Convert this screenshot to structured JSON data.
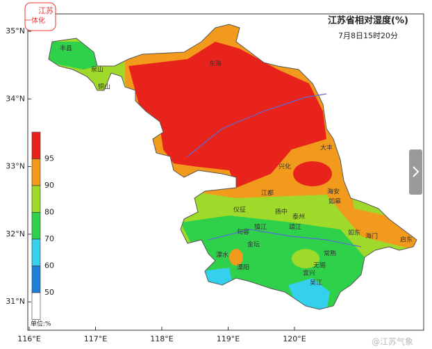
{
  "logo": {
    "line1": "江苏",
    "line2": "一体化"
  },
  "title": "江苏省相对湿度(%)",
  "subtitle": "7月8日15时20分",
  "latitude_labels": [
    "35°N",
    "34°N",
    "33°N",
    "32°N",
    "31°N"
  ],
  "longitude_labels": [
    "116°E",
    "117°E",
    "118°E",
    "119°E",
    "120°E"
  ],
  "legend": {
    "colors": [
      "#e8231c",
      "#f29a1c",
      "#9fd92a",
      "#2fd14a",
      "#35d0ee",
      "#1f7fd6",
      "#ffffff"
    ],
    "labels": [
      "95",
      "90",
      "80",
      "70",
      "60",
      "50"
    ],
    "unit": "单位:%"
  },
  "places": [
    "丰县",
    "泉山",
    "铜山",
    "东海",
    "兴化",
    "大丰",
    "江都",
    "海安",
    "如皋",
    "仪征",
    "扬中",
    "泰州",
    "靖江",
    "句容",
    "镇江",
    "溧水",
    "金坛",
    "无锡",
    "常熟",
    "海门",
    "启东",
    "如东",
    "溧阳",
    "宜兴",
    "吴江"
  ],
  "watermark": "@江苏气象"
}
